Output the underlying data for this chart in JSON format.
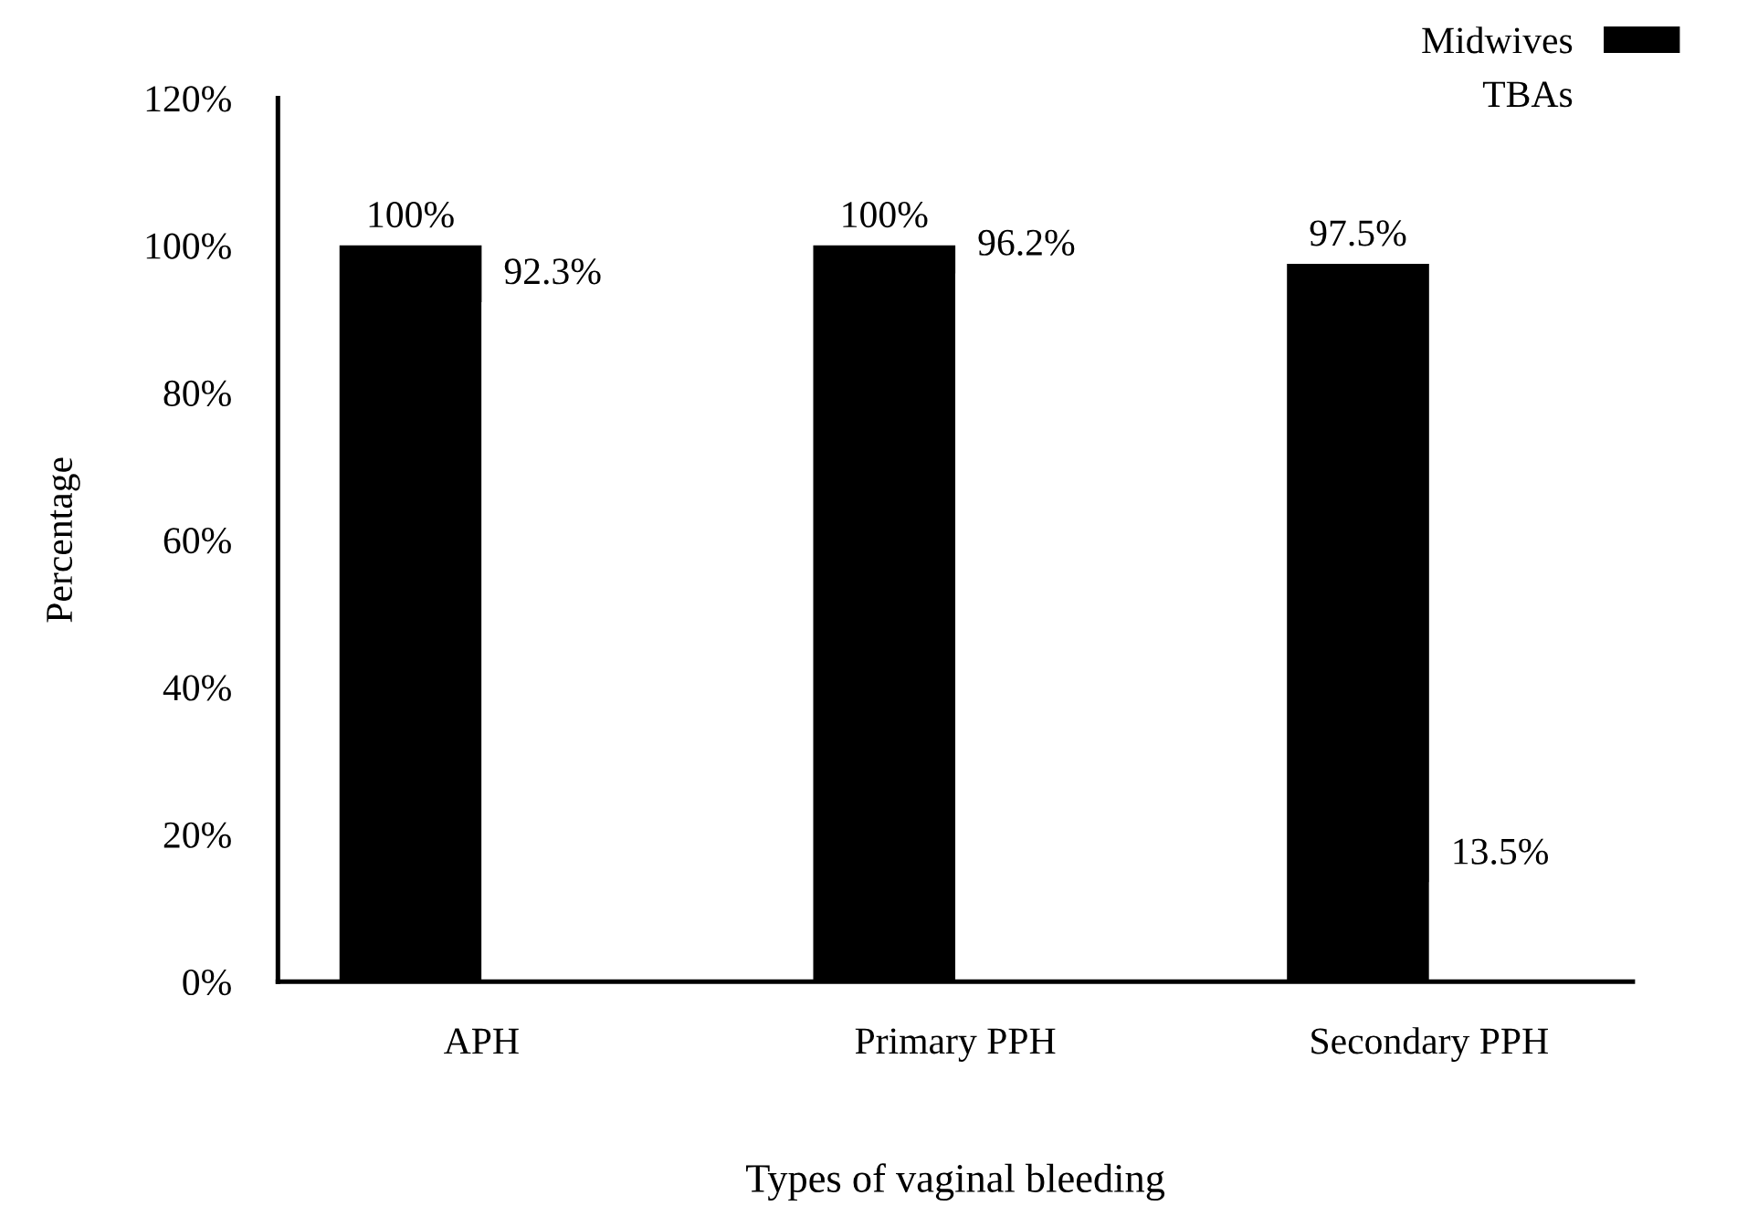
{
  "chart_data": {
    "type": "bar",
    "xlabel": "Types of vaginal bleeding",
    "ylabel": "Percentage",
    "categories": [
      "APH",
      "Primary PPH",
      "Secondary PPH"
    ],
    "series": [
      {
        "name": "Midwives",
        "color": "#000000",
        "values": [
          100,
          100,
          97.5
        ],
        "value_labels": [
          "100%",
          "100%",
          "97.5%"
        ]
      },
      {
        "name": "TBAs",
        "color": "#ffffff",
        "values": [
          92.3,
          96.2,
          13.5
        ],
        "value_labels": [
          "92.3%",
          "96.2%",
          "13.5%"
        ]
      }
    ],
    "ylim": [
      0,
      120
    ],
    "yticks": [
      {
        "value": 0,
        "label": "0%"
      },
      {
        "value": 20,
        "label": "20%"
      },
      {
        "value": 40,
        "label": "40%"
      },
      {
        "value": 60,
        "label": "60%"
      },
      {
        "value": 80,
        "label": "80%"
      },
      {
        "value": 100,
        "label": "100%"
      },
      {
        "value": 120,
        "label": "120%"
      }
    ],
    "grid": false,
    "legend": "top right"
  }
}
